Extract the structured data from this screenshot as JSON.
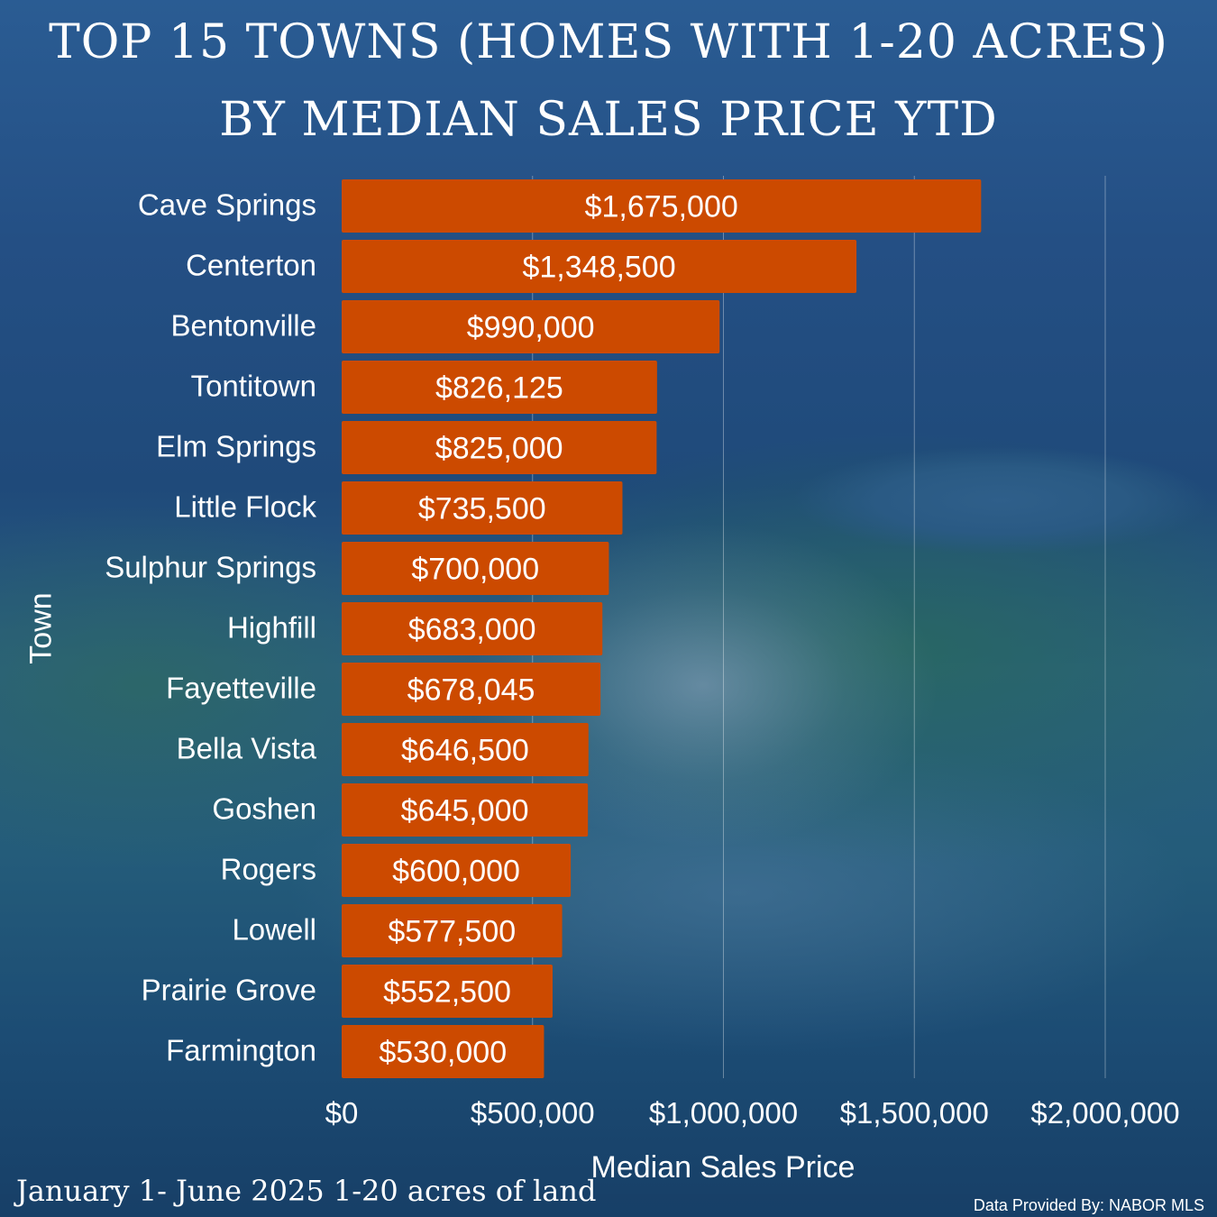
{
  "header": {
    "title_line1": "TOP 15 TOWNS (HOMES WITH 1-20 ACRES)",
    "title_line2": "BY MEDIAN SALES PRICE YTD"
  },
  "footnote": "January 1- June 2025 1-20 acres of land",
  "credit": "Data Provided By: NABOR MLS",
  "colors": {
    "bar": "#cc4a00",
    "text": "#ffffff",
    "gridline": "rgba(255,255,255,0.35)"
  },
  "chart_data": {
    "type": "bar",
    "orientation": "horizontal",
    "ylabel": "Town",
    "xlabel": "Median Sales Price",
    "xlim": [
      0,
      2000000
    ],
    "xticks": [
      0,
      500000,
      1000000,
      1500000,
      2000000
    ],
    "xtick_labels": [
      "$0",
      "$500,000",
      "$1,000,000",
      "$1,500,000",
      "$2,000,000"
    ],
    "grid": true,
    "categories": [
      "Cave Springs",
      "Centerton",
      "Bentonville",
      "Tontitown",
      "Elm Springs",
      "Little Flock",
      "Sulphur Springs",
      "Highfill",
      "Fayetteville",
      "Bella Vista",
      "Goshen",
      "Rogers",
      "Lowell",
      "Prairie Grove",
      "Farmington"
    ],
    "values": [
      1675000,
      1348500,
      990000,
      826125,
      825000,
      735500,
      700000,
      683000,
      678045,
      646500,
      645000,
      600000,
      577500,
      552500,
      530000
    ],
    "data_labels": [
      "$1,675,000",
      "$1,348,500",
      "$990,000",
      "$826,125",
      "$825,000",
      "$735,500",
      "$700,000",
      "$683,000",
      "$678,045",
      "$646,500",
      "$645,000",
      "$600,000",
      "$577,500",
      "$552,500",
      "$530,000"
    ]
  }
}
